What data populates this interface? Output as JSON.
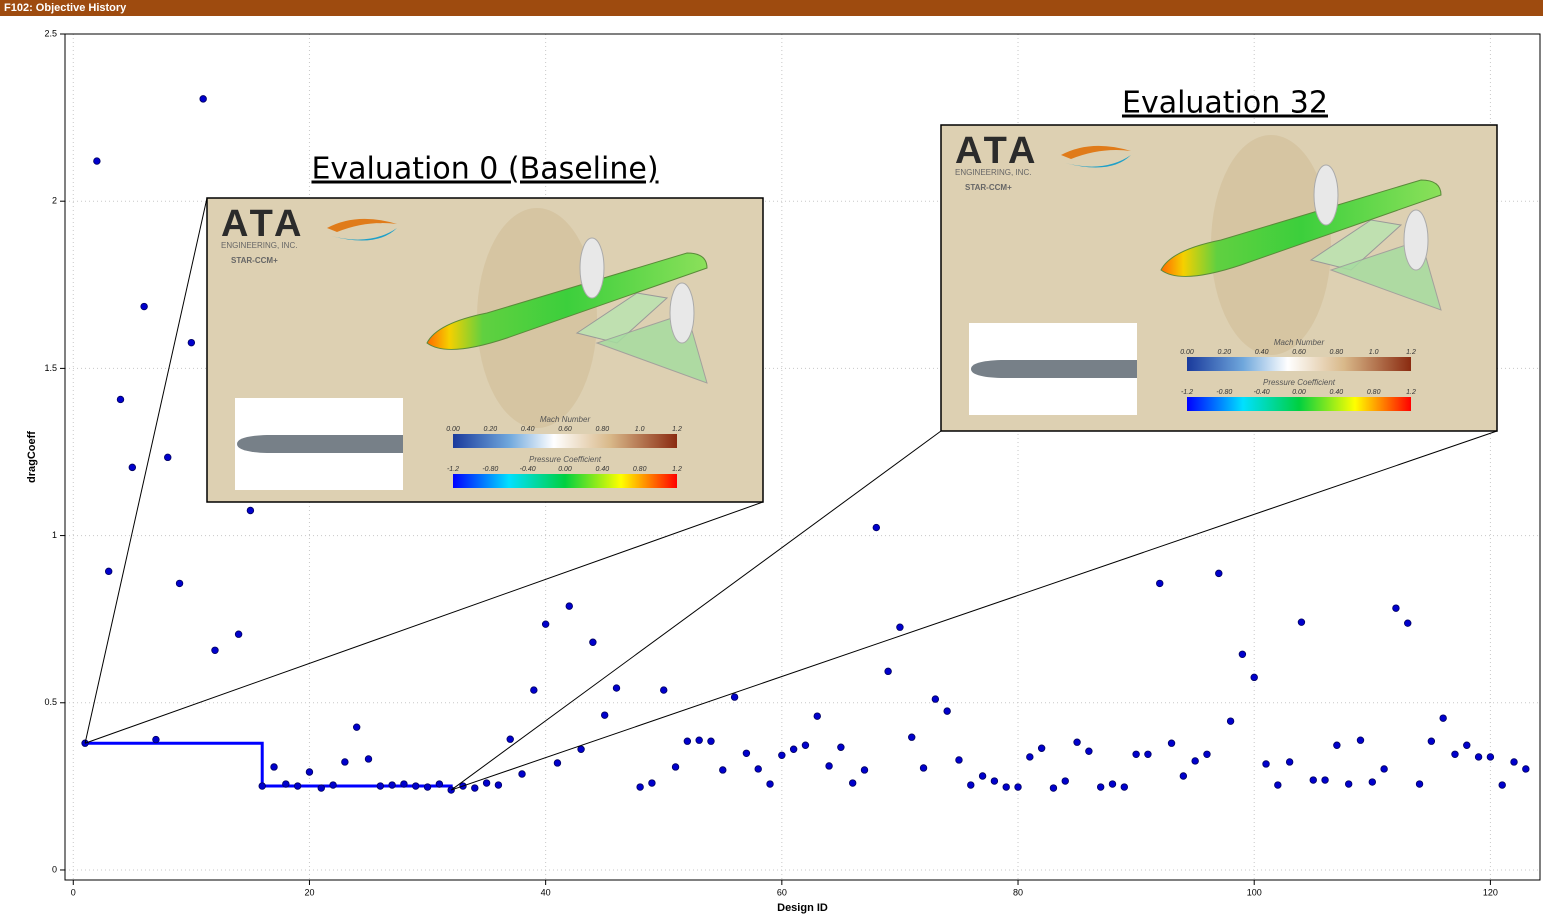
{
  "window": {
    "title": "F102: Objective History"
  },
  "chart_data": {
    "type": "scatter",
    "xlabel": "Design ID",
    "ylabel": "dragCoeff",
    "xlim": [
      -0.7,
      124.2
    ],
    "ylim": [
      -0.03,
      2.5
    ],
    "xticks": [
      0,
      20,
      40,
      60,
      80,
      100,
      120
    ],
    "yticks": [
      0,
      0.5,
      1,
      1.5,
      2,
      2.5
    ],
    "grid": true,
    "series": [
      {
        "color": "#0000cc",
        "x": [
          1,
          2,
          3,
          4,
          5,
          6,
          7,
          8,
          9,
          10,
          11,
          12,
          14,
          15,
          16,
          17,
          18,
          19,
          20,
          21,
          22,
          23,
          24,
          25,
          26,
          27,
          28,
          29,
          30,
          31,
          32,
          33,
          34,
          35,
          36,
          37,
          38,
          39,
          40,
          41,
          42,
          43,
          44,
          45,
          46,
          48,
          49,
          50,
          51,
          52,
          53,
          54,
          55,
          56,
          57,
          58,
          59,
          60,
          61,
          62,
          63,
          64,
          65,
          66,
          67,
          68,
          69,
          70,
          71,
          72,
          73,
          74,
          75,
          76,
          77,
          78,
          79,
          80,
          81,
          82,
          83,
          84,
          85,
          86,
          87,
          88,
          89,
          90,
          91,
          92,
          93,
          94,
          95,
          96,
          97,
          98,
          99,
          100,
          101,
          102,
          103,
          104,
          105,
          106,
          107,
          108,
          109,
          110,
          111,
          112,
          113,
          114,
          115,
          116,
          117,
          118,
          119,
          120,
          121,
          122,
          123
        ],
        "values": [
          0.379,
          2.12,
          0.893,
          1.407,
          1.204,
          1.685,
          0.39,
          1.234,
          0.857,
          1.577,
          2.306,
          0.657,
          0.705,
          1.075,
          0.251,
          0.308,
          0.257,
          0.251,
          0.293,
          0.245,
          0.254,
          0.323,
          0.427,
          0.332,
          0.251,
          0.254,
          0.257,
          0.251,
          0.248,
          0.257,
          0.239,
          0.251,
          0.245,
          0.26,
          0.254,
          0.391,
          0.287,
          0.538,
          0.735,
          0.32,
          0.789,
          0.361,
          0.681,
          0.463,
          0.544,
          0.248,
          0.26,
          0.538,
          0.308,
          0.385,
          0.388,
          0.385,
          0.299,
          0.517,
          0.349,
          0.302,
          0.257,
          0.343,
          0.361,
          0.373,
          0.46,
          0.311,
          0.367,
          0.26,
          0.299,
          1.024,
          0.594,
          0.726,
          0.397,
          0.305,
          0.511,
          0.475,
          0.329,
          0.254,
          0.281,
          0.266,
          0.248,
          0.248,
          0.338,
          0.364,
          0.245,
          0.266,
          0.382,
          0.355,
          0.248,
          0.257,
          0.248,
          0.346,
          0.346,
          0.857,
          0.379,
          0.281,
          0.326,
          0.346,
          0.887,
          0.445,
          0.645,
          0.576,
          0.317,
          0.254,
          0.323,
          0.741,
          0.269,
          0.269,
          0.373,
          0.257,
          0.388,
          0.263,
          0.302,
          0.783,
          0.738,
          0.257,
          0.385,
          0.454,
          0.346,
          0.373,
          0.338,
          0.338,
          0.254,
          0.323,
          0.302
        ]
      },
      {
        "color": "#0000ff",
        "x": [
          1,
          16,
          32
        ],
        "values": [
          0.379,
          0.251,
          0.239
        ]
      }
    ],
    "annotations": [
      {
        "title": "Evaluation 0 (Baseline)",
        "logo": "ATA",
        "company": "ENGINEERING, INC.",
        "software": "STAR-CCM+",
        "legends": [
          {
            "title": "Mach Number",
            "ticks": [
              "0.00",
              "0.20",
              "0.40",
              "0.60",
              "0.80",
              "1.0",
              "1.2"
            ]
          },
          {
            "title": "Pressure Coefficient",
            "ticks": [
              "-1.2",
              "-0.80",
              "-0.40",
              "0.00",
              "0.40",
              "0.80",
              "1.2"
            ]
          }
        ]
      },
      {
        "title": "Evaluation 32",
        "logo": "ATA",
        "company": "ENGINEERING, INC.",
        "software": "STAR-CCM+",
        "legends": [
          {
            "title": "Mach Number",
            "ticks": [
              "0.00",
              "0.20",
              "0.40",
              "0.60",
              "0.80",
              "1.0",
              "1.2"
            ]
          },
          {
            "title": "Pressure Coefficient",
            "ticks": [
              "-1.2",
              "-0.80",
              "-0.40",
              "0.00",
              "0.40",
              "0.80",
              "1.2"
            ]
          }
        ]
      }
    ]
  }
}
